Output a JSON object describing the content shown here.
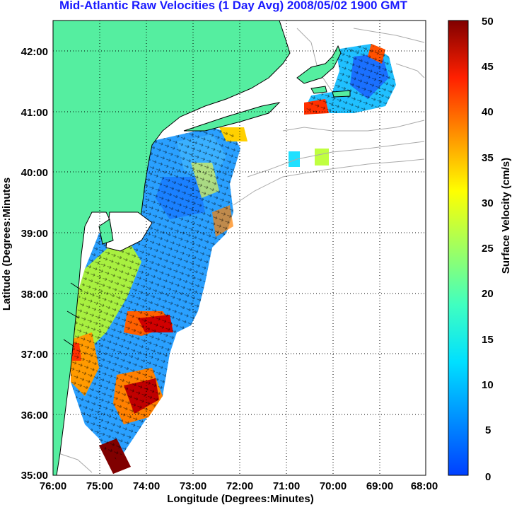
{
  "title": "Mid-Atlantic Raw Velocities (1 Day Avg) 2008/05/02 1900 GMT",
  "xlabel": "Longitude (Degrees:Minutes)",
  "ylabel": "Latitude (Degrees:Minutes",
  "x_ticks": [
    "76:00",
    "75:00",
    "74:00",
    "73:00",
    "72:00",
    "71:00",
    "70:00",
    "69:00",
    "68:00"
  ],
  "y_ticks": [
    "42:00",
    "41:00",
    "40:00",
    "39:00",
    "38:00",
    "37:00",
    "36:00",
    "35:00"
  ],
  "colorbar": {
    "label": "Surface Velocity (cm/s)",
    "ticks": [
      "50",
      "45",
      "40",
      "35",
      "30",
      "25",
      "20",
      "15",
      "10",
      "5",
      "0"
    ],
    "range": [
      0,
      50
    ]
  },
  "colors": {
    "land": "#55eea0",
    "coast": "#000000",
    "bathymetry": "#aaaaaa",
    "grid": "#000000",
    "title": "#1a1aff"
  }
}
